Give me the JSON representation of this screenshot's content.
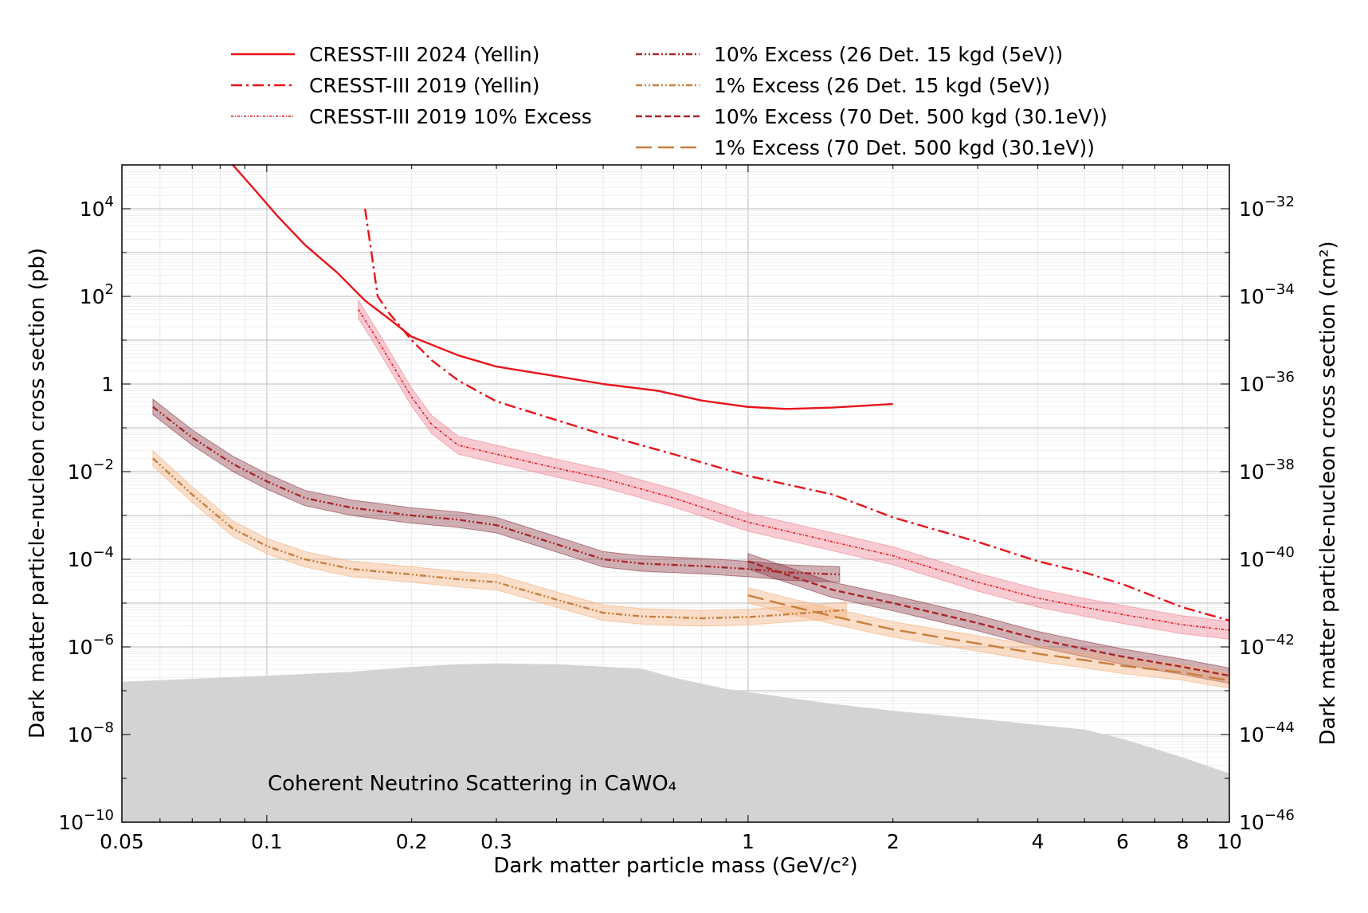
{
  "chart_data": {
    "type": "line",
    "xlabel": "Dark matter particle mass (GeV/c²)",
    "ylabel_left": "Dark matter particle-nucleon cross section (pb)",
    "ylabel_right": "Dark matter particle-nucleon cross section (cm²)",
    "x_scale": "log",
    "y_scale": "log",
    "xlim": [
      0.05,
      10
    ],
    "ylim_pb": [
      1e-10,
      100000.0
    ],
    "ylim_cm2": [
      1e-46,
      1e-31
    ],
    "grid": true,
    "legend_placement": "top (above plot, two columns)",
    "x_tick_labels": [
      "0.05",
      "0.1",
      "0.2",
      "0.3",
      "1",
      "2",
      "4",
      "6",
      "8",
      "10"
    ],
    "y_left_tick_labels": [
      {
        "mant": "10",
        "exp": "−10",
        "v": -10
      },
      {
        "mant": "10",
        "exp": "−8",
        "v": -8
      },
      {
        "mant": "10",
        "exp": "−6",
        "v": -6
      },
      {
        "mant": "10",
        "exp": "−4",
        "v": -4
      },
      {
        "mant": "10",
        "exp": "−2",
        "v": -2
      },
      {
        "mant": "1",
        "exp": "",
        "v": 0
      },
      {
        "mant": "10",
        "exp": "2",
        "v": 2
      },
      {
        "mant": "10",
        "exp": "4",
        "v": 4
      }
    ],
    "y_right_tick_labels": [
      {
        "mant": "10",
        "exp": "−46",
        "v": -46
      },
      {
        "mant": "10",
        "exp": "−44",
        "v": -44
      },
      {
        "mant": "10",
        "exp": "−42",
        "v": -42
      },
      {
        "mant": "10",
        "exp": "−40",
        "v": -40
      },
      {
        "mant": "10",
        "exp": "−38",
        "v": -38
      },
      {
        "mant": "10",
        "exp": "−36",
        "v": -36
      },
      {
        "mant": "10",
        "exp": "−34",
        "v": -34
      },
      {
        "mant": "10",
        "exp": "−32",
        "v": -32
      }
    ],
    "annotation": "Coherent Neutrino Scattering in CaWO₄",
    "neutrino_floor": {
      "color": "#d3d3d3",
      "x": [
        0.05,
        0.1,
        0.15,
        0.2,
        0.25,
        0.3,
        0.4,
        0.6,
        0.7,
        0.9,
        1.2,
        1.5,
        2,
        3,
        5,
        6,
        8,
        10
      ],
      "y": [
        1.6e-07,
        2.2e-07,
        2.7e-07,
        3.5e-07,
        4e-07,
        4.2e-07,
        4e-07,
        3.2e-07,
        2e-07,
        1.1e-07,
        7e-08,
        5e-08,
        3.5e-08,
        2.3e-08,
        1.3e-08,
        8e-09,
        3e-09,
        1.3e-09
      ]
    },
    "series": [
      {
        "name": "CRESST-III 2024 (Yellin)",
        "color": "#e8141a",
        "dash": "solid",
        "width": 2.4,
        "x": [
          0.085,
          0.095,
          0.105,
          0.12,
          0.14,
          0.16,
          0.18,
          0.2,
          0.25,
          0.3,
          0.4,
          0.5,
          0.65,
          0.8,
          1.0,
          1.2,
          1.5,
          2.0
        ],
        "y": [
          100000.0,
          25000.0,
          7000.0,
          1500.0,
          350,
          80,
          30,
          12,
          4.5,
          2.5,
          1.5,
          1.0,
          0.7,
          0.42,
          0.3,
          0.27,
          0.29,
          0.35
        ]
      },
      {
        "name": "CRESST-III 2019 (Yellin)",
        "color": "#e8141a",
        "dash": "dashdot",
        "width": 2.4,
        "x": [
          0.16,
          0.165,
          0.17,
          0.18,
          0.2,
          0.22,
          0.25,
          0.3,
          0.4,
          0.5,
          0.7,
          1.0,
          1.5,
          2.0,
          3.0,
          4.0,
          5.0,
          6.0,
          8.0,
          10.0
        ],
        "y": [
          10000.0,
          1000.0,
          100.0,
          40,
          10,
          3.5,
          1.2,
          0.4,
          0.15,
          0.07,
          0.025,
          0.008,
          0.003,
          0.0009,
          0.00025,
          9e-05,
          5e-05,
          2.7e-05,
          8e-06,
          4e-06
        ]
      },
      {
        "name": "CRESST-III 2019 10% Excess",
        "color": "#e8141a",
        "dash": "dotdense",
        "width": 1.6,
        "band_color": "#f08090",
        "band_factor": 1.6,
        "x": [
          0.155,
          0.17,
          0.2,
          0.22,
          0.25,
          0.3,
          0.4,
          0.5,
          0.7,
          1.0,
          1.5,
          2.0,
          3.0,
          4.0,
          5.0,
          6.0,
          8.0,
          10.0
        ],
        "y": [
          50,
          10,
          0.5,
          0.12,
          0.04,
          0.025,
          0.012,
          0.007,
          0.0025,
          0.0007,
          0.00025,
          0.00012,
          3e-05,
          1.3e-05,
          8e-06,
          5.5e-06,
          3.2e-06,
          2.4e-06
        ]
      },
      {
        "name": "10% Excess (26 Det. 15 kgd (5eV))",
        "color": "#a8282a",
        "dash": "dashdotdot",
        "width": 2.4,
        "band_color": "#8c3a45",
        "band_factor": 1.5,
        "x": [
          0.058,
          0.07,
          0.085,
          0.1,
          0.12,
          0.15,
          0.2,
          0.25,
          0.3,
          0.4,
          0.5,
          0.6,
          0.8,
          1.0,
          1.2,
          1.55
        ],
        "y": [
          0.3,
          0.06,
          0.015,
          0.006,
          0.0025,
          0.0015,
          0.001,
          0.0008,
          0.0006,
          0.00022,
          0.0001,
          8e-05,
          7e-05,
          6e-05,
          5e-05,
          4.5e-05
        ]
      },
      {
        "name": "1% Excess (26 Det. 15 kgd (5eV))",
        "color": "#c87f3d",
        "dash": "dashdotdot",
        "width": 2.4,
        "band_color": "#f5b07a",
        "band_factor": 1.5,
        "x": [
          0.058,
          0.07,
          0.085,
          0.1,
          0.12,
          0.15,
          0.2,
          0.25,
          0.3,
          0.4,
          0.5,
          0.6,
          0.8,
          1.0,
          1.2,
          1.6
        ],
        "y": [
          0.02,
          0.003,
          0.0005,
          0.0002,
          0.0001,
          6e-05,
          4.5e-05,
          3.5e-05,
          3e-05,
          1.2e-05,
          6e-06,
          5e-06,
          4.5e-06,
          4.8e-06,
          5.5e-06,
          7e-06
        ]
      },
      {
        "name": "10% Excess (70 Det. 500 kgd (30.1eV))",
        "color": "#a8282a",
        "dash": "dashed",
        "width": 2.4,
        "band_color": "#8c3a45",
        "band_factor": 1.5,
        "x": [
          1.0,
          1.2,
          1.5,
          2.0,
          3.0,
          4.0,
          5.0,
          6.0,
          8.0,
          10.0
        ],
        "y": [
          9e-05,
          4.5e-05,
          2e-05,
          1e-05,
          3.5e-06,
          1.5e-06,
          9e-07,
          6e-07,
          3.5e-07,
          2.2e-07
        ]
      },
      {
        "name": "1% Excess (70 Det. 500 kgd (30.1eV))",
        "color": "#c87f3d",
        "dash": "longdash",
        "width": 2.4,
        "band_color": "#f5b07a",
        "band_factor": 1.5,
        "x": [
          1.0,
          1.2,
          1.5,
          2.0,
          3.0,
          4.0,
          5.0,
          6.0,
          8.0,
          10.0
        ],
        "y": [
          1.5e-05,
          9e-06,
          5e-06,
          2.5e-06,
          1.2e-06,
          7e-07,
          5e-07,
          3.7e-07,
          2.6e-07,
          1.7e-07
        ]
      }
    ]
  }
}
